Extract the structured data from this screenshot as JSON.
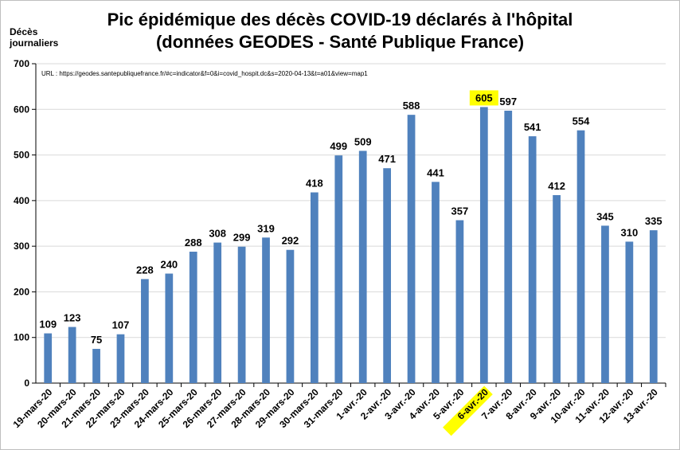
{
  "title_line1": "Pic épidémique des décès COVID-19 déclarés à l'hôpital",
  "title_line2": "(données GEODES - Santé Publique France)",
  "ylabel_line1": "Décès",
  "ylabel_line2": "journaliers",
  "url_note": "URL : https://geodes.santepubliquefrance.fr/#c=indicator&f=0&i=covid_hospit.dc&s=2020-04-13&t=a01&view=map1",
  "colors": {
    "bar": "#4f81bd",
    "highlight": "#ffff00",
    "axis": "#000000",
    "grid": "#d9d9d9"
  },
  "chart_data": {
    "type": "bar",
    "ylim": [
      0,
      700
    ],
    "yticks": [
      0,
      100,
      200,
      300,
      400,
      500,
      600,
      700
    ],
    "grid": true,
    "categories": [
      "19-mars-20",
      "20-mars-20",
      "21-mars-20",
      "22-mars-20",
      "23-mars-20",
      "24-mars-20",
      "25-mars-20",
      "26-mars-20",
      "27-mars-20",
      "28-mars-20",
      "29-mars-20",
      "30-mars-20",
      "31-mars-20",
      "1-avr.-20",
      "2-avr.-20",
      "3-avr.-20",
      "4-avr.-20",
      "5-avr.-20",
      "6-avr.-20",
      "7-avr.-20",
      "8-avr.-20",
      "9-avr.-20",
      "10-avr.-20",
      "11-avr.-20",
      "12-avr.-20",
      "13-avr.-20"
    ],
    "values": [
      109,
      123,
      75,
      107,
      228,
      240,
      288,
      308,
      299,
      319,
      292,
      418,
      499,
      509,
      471,
      588,
      441,
      357,
      605,
      597,
      541,
      412,
      554,
      345,
      310,
      335
    ],
    "highlight_category": "6-avr.-20"
  }
}
